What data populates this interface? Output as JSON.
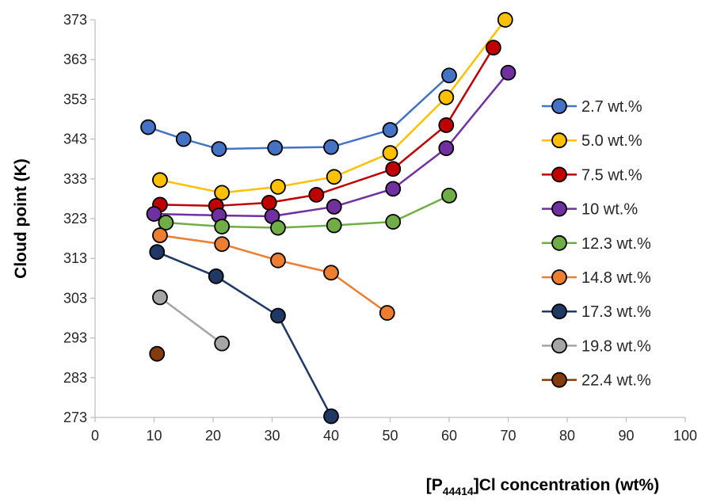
{
  "chart_data": {
    "type": "scatter",
    "xlabel": {
      "main": "[P",
      "sub": "44414",
      "rest": "]Cl concentration (wt%)"
    },
    "ylabel": "Cloud point (K)",
    "xlim": [
      0,
      100
    ],
    "ylim": [
      273,
      373
    ],
    "x_ticks": [
      0,
      10,
      20,
      30,
      40,
      50,
      60,
      70,
      80,
      90,
      100
    ],
    "y_ticks": [
      273,
      283,
      293,
      303,
      313,
      323,
      333,
      343,
      353,
      363,
      373
    ],
    "grid": false,
    "legend_position": "right",
    "series": [
      {
        "name": "2.7 wt.%",
        "color": "#4472C4",
        "x": [
          9,
          15,
          21,
          30.5,
          40,
          50,
          60
        ],
        "y": [
          346,
          343,
          340.5,
          340.8,
          341,
          345.3,
          359
        ]
      },
      {
        "name": "5.0 wt.%",
        "color": "#FFC000",
        "x": [
          11,
          21.5,
          31,
          40.5,
          50,
          59.5,
          69.5
        ],
        "y": [
          332.7,
          329.5,
          331,
          333.5,
          339.5,
          353.5,
          373
        ]
      },
      {
        "name": "7.5 wt.%",
        "color": "#C00000",
        "x": [
          11,
          20.5,
          29.5,
          37.5,
          50.5,
          59.5,
          67.5
        ],
        "y": [
          326.5,
          326.2,
          327,
          329,
          335.5,
          346.5,
          366
        ]
      },
      {
        "name": "10 wt.%",
        "color": "#7030A0",
        "x": [
          10,
          21,
          30,
          40.5,
          50.5,
          59.5,
          70
        ],
        "y": [
          324.2,
          323.8,
          323.6,
          326,
          330.5,
          340.7,
          359.7
        ]
      },
      {
        "name": "12.3 wt.%",
        "color": "#70AD47",
        "x": [
          12,
          21.5,
          31,
          40.5,
          50.5,
          60
        ],
        "y": [
          322,
          321,
          320.7,
          321.3,
          322.2,
          328.8
        ]
      },
      {
        "name": "14.8 wt.%",
        "color": "#ED7D31",
        "x": [
          11,
          21.5,
          31,
          40,
          49.5
        ],
        "y": [
          318.8,
          316.6,
          312.5,
          309.4,
          299.3
        ]
      },
      {
        "name": "17.3 wt.%",
        "color": "#203864",
        "x": [
          10.5,
          20.5,
          31,
          40
        ],
        "y": [
          314.6,
          308.5,
          298.6,
          273.3
        ]
      },
      {
        "name": "19.8 wt.%",
        "color": "#A5A5A5",
        "x": [
          11,
          21.5
        ],
        "y": [
          303.2,
          291.6
        ]
      },
      {
        "name": "22.4 wt.%",
        "color": "#843C0C",
        "x": [
          10.5
        ],
        "y": [
          289
        ]
      }
    ]
  }
}
